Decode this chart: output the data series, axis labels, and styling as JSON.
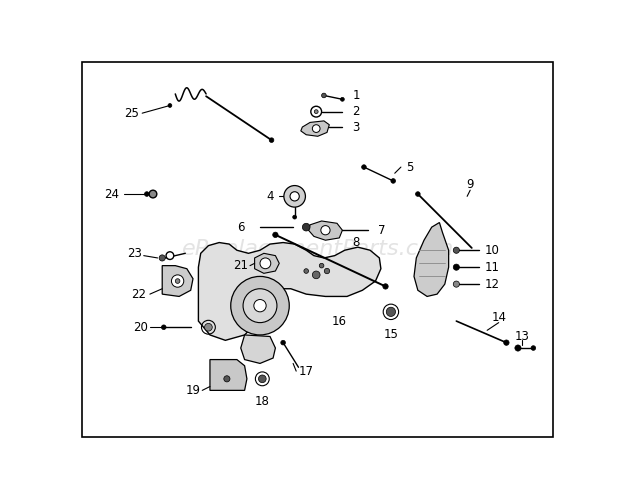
{
  "bg_color": "#ffffff",
  "border_color": "#000000",
  "watermark": "eReplacementParts.com",
  "watermark_color": "#c8c8c8",
  "label_color": "#000000",
  "line_color": "#000000"
}
